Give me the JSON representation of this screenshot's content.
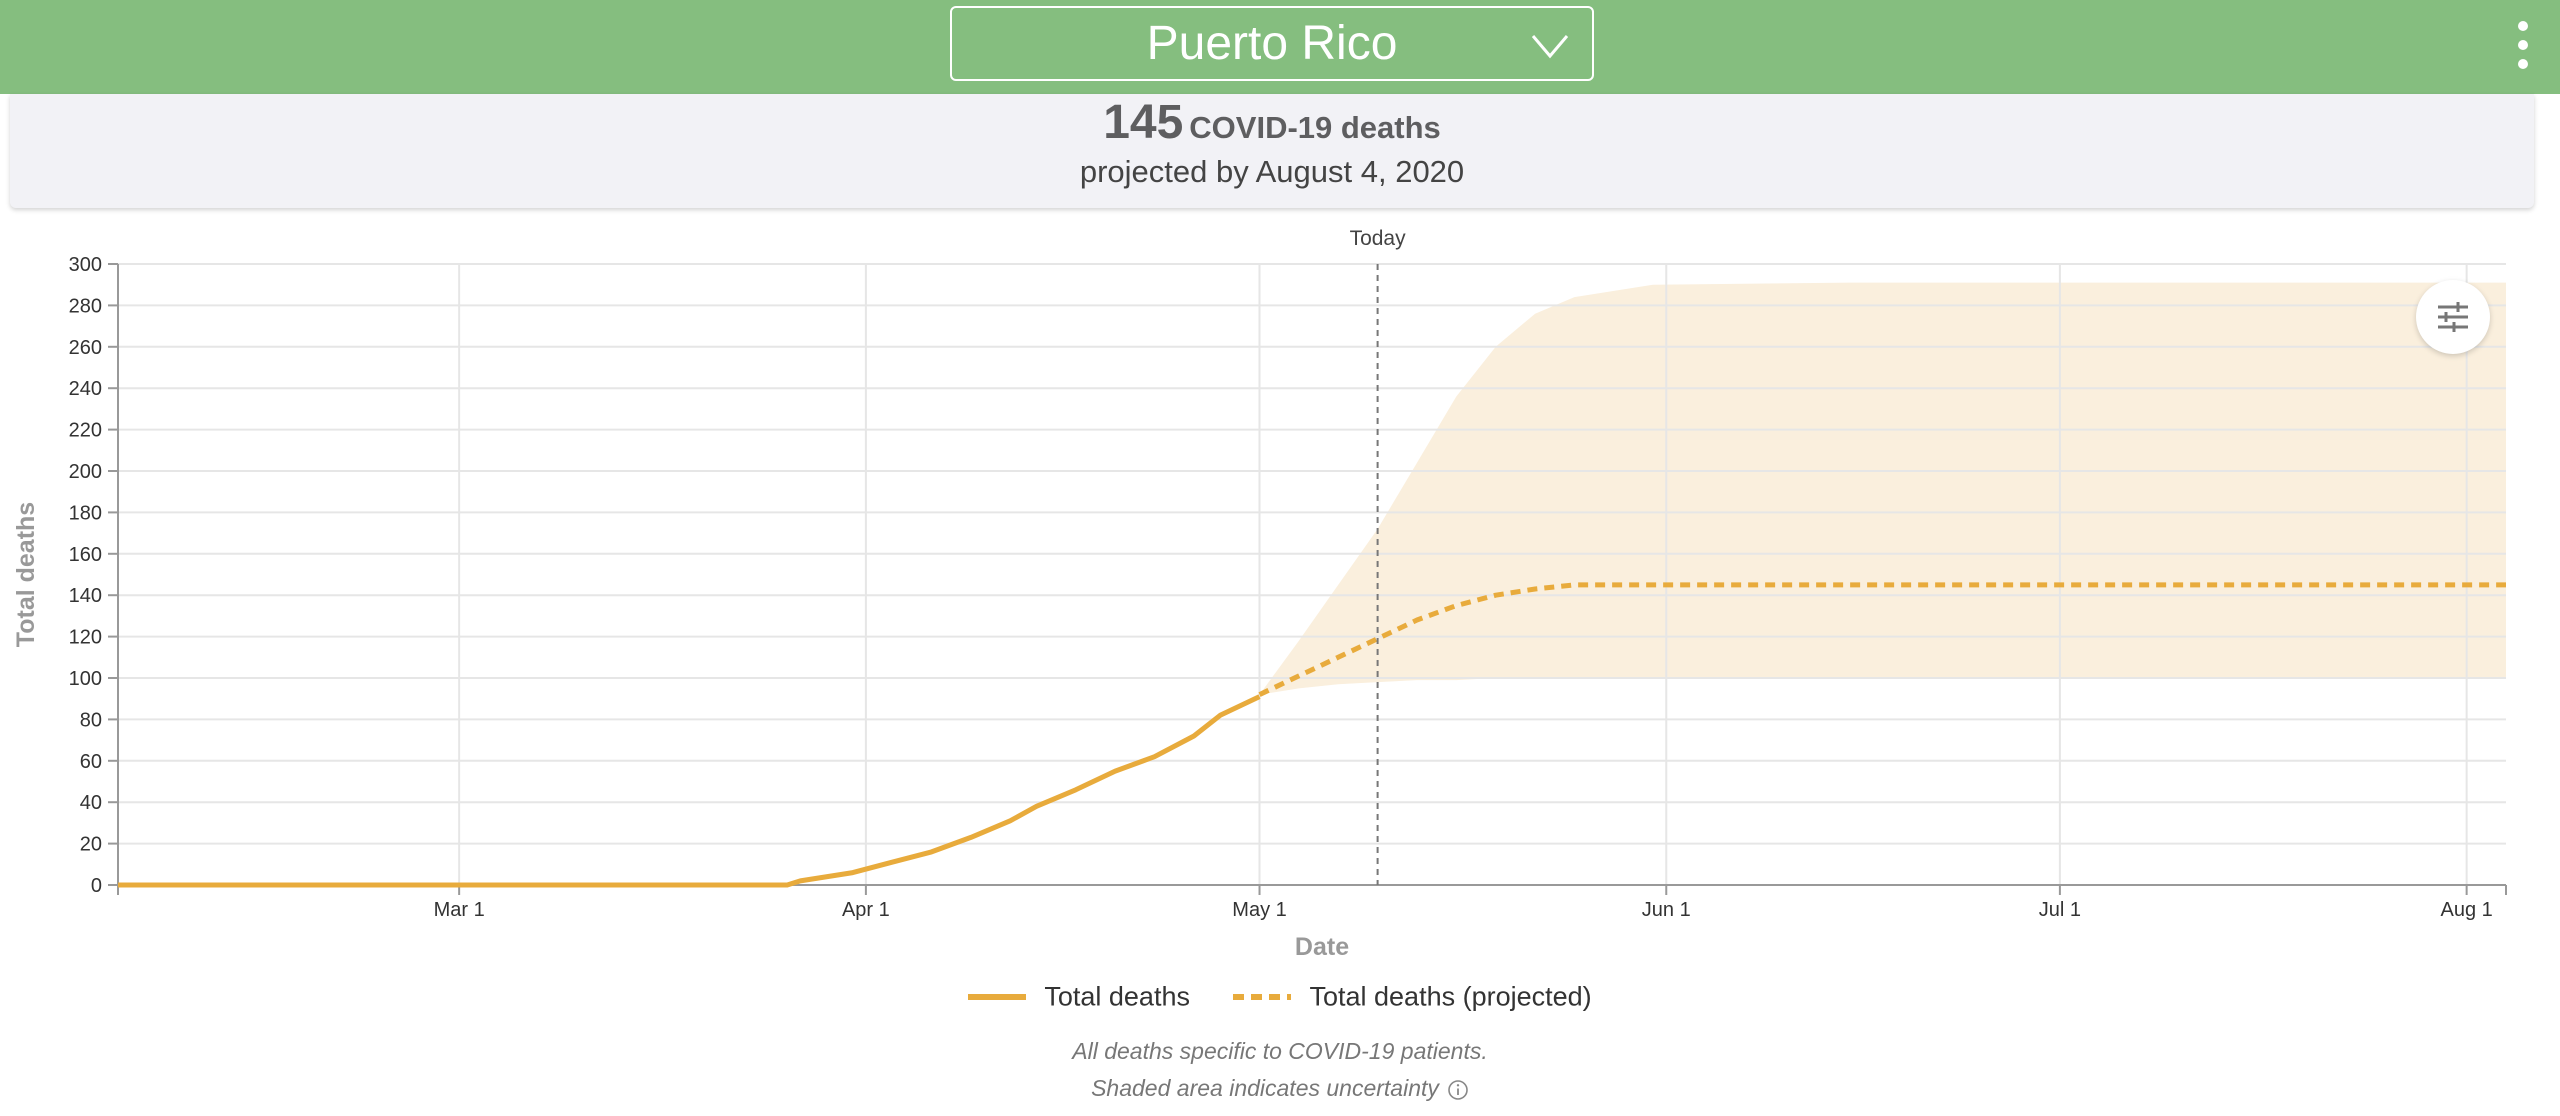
{
  "header": {
    "location": "Puerto Rico",
    "colors": {
      "bar": "#85be7f",
      "text": "#ffffff"
    },
    "icons": {
      "dropdown": "chevron-down-icon",
      "menu": "more-vertical-icon"
    }
  },
  "summary": {
    "count": "145",
    "label": "COVID-19 deaths",
    "projection_text": "projected by August 4, 2020"
  },
  "chart_data": {
    "type": "line",
    "xlabel": "Date",
    "ylabel": "Total deaths",
    "ylim": [
      0,
      300
    ],
    "yticks": [
      0,
      20,
      40,
      60,
      80,
      100,
      120,
      140,
      160,
      180,
      200,
      220,
      240,
      260,
      280,
      300
    ],
    "xlim": [
      "2020-02-04",
      "2020-08-04"
    ],
    "xticks": [
      {
        "date": "2020-03-01",
        "label": "Mar 1"
      },
      {
        "date": "2020-04-01",
        "label": "Apr 1"
      },
      {
        "date": "2020-05-01",
        "label": "May 1"
      },
      {
        "date": "2020-06-01",
        "label": "Jun 1"
      },
      {
        "date": "2020-07-01",
        "label": "Jul 1"
      },
      {
        "date": "2020-08-01",
        "label": "Aug 1"
      }
    ],
    "today": {
      "date": "2020-05-10",
      "label": "Today"
    },
    "grid": true,
    "legend_position": "bottom",
    "colors": {
      "series": "#e8ab3c",
      "band": "#faefdd",
      "grid": "#e6e6e6",
      "axis": "#999999"
    },
    "series": [
      {
        "name": "Total deaths",
        "style": "solid",
        "points": [
          [
            "2020-02-04",
            0
          ],
          [
            "2020-03-26",
            0
          ],
          [
            "2020-03-27",
            2
          ],
          [
            "2020-03-31",
            6
          ],
          [
            "2020-04-03",
            11
          ],
          [
            "2020-04-06",
            16
          ],
          [
            "2020-04-09",
            23
          ],
          [
            "2020-04-12",
            31
          ],
          [
            "2020-04-14",
            38
          ],
          [
            "2020-04-17",
            46
          ],
          [
            "2020-04-20",
            55
          ],
          [
            "2020-04-23",
            62
          ],
          [
            "2020-04-26",
            72
          ],
          [
            "2020-04-28",
            82
          ],
          [
            "2020-05-01",
            91
          ]
        ]
      },
      {
        "name": "Total deaths (projected)",
        "style": "dashed",
        "points": [
          [
            "2020-05-01",
            92
          ],
          [
            "2020-05-04",
            101
          ],
          [
            "2020-05-07",
            110
          ],
          [
            "2020-05-10",
            119
          ],
          [
            "2020-05-13",
            128
          ],
          [
            "2020-05-16",
            135
          ],
          [
            "2020-05-19",
            140
          ],
          [
            "2020-05-22",
            143
          ],
          [
            "2020-05-25",
            145
          ],
          [
            "2020-06-01",
            145
          ],
          [
            "2020-07-01",
            145
          ],
          [
            "2020-08-04",
            145
          ]
        ]
      }
    ],
    "uncertainty": {
      "dates": [
        "2020-05-01",
        "2020-05-04",
        "2020-05-07",
        "2020-05-10",
        "2020-05-13",
        "2020-05-16",
        "2020-05-19",
        "2020-05-22",
        "2020-05-25",
        "2020-05-31",
        "2020-06-15",
        "2020-08-04"
      ],
      "lower": [
        92,
        95,
        97,
        98,
        99,
        99,
        100,
        100,
        100,
        100,
        100,
        100
      ],
      "upper": [
        92,
        118,
        145,
        172,
        204,
        236,
        260,
        276,
        284,
        290,
        291,
        291
      ]
    }
  },
  "legend": {
    "items": [
      {
        "label": "Total deaths",
        "style": "solid"
      },
      {
        "label": "Total deaths (projected)",
        "style": "dashed"
      }
    ]
  },
  "footnote": {
    "line1": "All deaths specific to COVID-19 patients.",
    "line2": "Shaded area indicates uncertainty"
  },
  "controls": {
    "settings_icon": "sliders-icon",
    "info_icon": "info-icon"
  }
}
